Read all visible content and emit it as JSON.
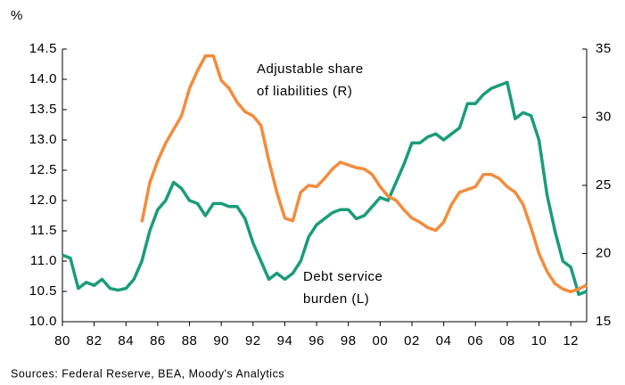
{
  "chart_data": {
    "type": "line",
    "y_label": "%",
    "source": "Sources: Federal Reserve, BEA, Moody's Analytics",
    "annotations": [
      {
        "lines": [
          "Adjustable share",
          "of liabilities (R)"
        ],
        "series": 1
      },
      {
        "lines": [
          "Debt service",
          "burden (L)"
        ],
        "series": 0
      }
    ],
    "x": [
      1980,
      1980.5,
      1981,
      1981.5,
      1982,
      1982.5,
      1983,
      1983.5,
      1984,
      1984.5,
      1985,
      1985.5,
      1986,
      1986.5,
      1987,
      1987.5,
      1988,
      1988.5,
      1989,
      1989.5,
      1990,
      1990.5,
      1991,
      1991.5,
      1992,
      1992.5,
      1993,
      1993.5,
      1994,
      1994.5,
      1995,
      1995.5,
      1996,
      1996.5,
      1997,
      1997.5,
      1998,
      1998.5,
      1999,
      1999.5,
      2000,
      2000.5,
      2001,
      2001.5,
      2002,
      2002.5,
      2003,
      2003.5,
      2004,
      2004.5,
      2005,
      2005.5,
      2006,
      2006.5,
      2007,
      2007.5,
      2008,
      2008.5,
      2009,
      2009.5,
      2010,
      2010.5,
      2011,
      2011.5,
      2012,
      2012.5,
      2013
    ],
    "series": [
      {
        "name": "Debt service burden (L)",
        "color": "#1a9c7a",
        "axis": "y",
        "values": [
          11.1,
          11.05,
          10.55,
          10.65,
          10.6,
          10.7,
          10.55,
          10.52,
          10.55,
          10.7,
          11.0,
          11.5,
          11.85,
          12.0,
          12.3,
          12.2,
          12.0,
          11.95,
          11.75,
          11.95,
          11.95,
          11.9,
          11.9,
          11.7,
          11.3,
          11.0,
          10.7,
          10.8,
          10.7,
          10.8,
          11.0,
          11.4,
          11.6,
          11.7,
          11.8,
          11.85,
          11.85,
          11.7,
          11.75,
          11.9,
          12.05,
          12.0,
          12.3,
          12.6,
          12.95,
          12.95,
          13.05,
          13.1,
          13.0,
          13.1,
          13.2,
          13.6,
          13.6,
          13.75,
          13.85,
          13.9,
          13.95,
          13.35,
          13.45,
          13.4,
          13.0,
          12.1,
          11.5,
          11.0,
          10.9,
          10.45,
          10.5
        ]
      },
      {
        "name": "Adjustable share of liabilities (R)",
        "color": "#f28c3c",
        "axis": "y2",
        "values": [
          null,
          null,
          null,
          null,
          null,
          null,
          null,
          null,
          null,
          null,
          22.3,
          25.2,
          26.8,
          28.1,
          29.1,
          30.1,
          32.1,
          33.4,
          34.5,
          34.5,
          32.7,
          32.1,
          31.1,
          30.4,
          30.1,
          29.4,
          26.8,
          24.5,
          22.6,
          22.4,
          24.5,
          25.0,
          24.9,
          25.5,
          26.2,
          26.7,
          26.5,
          26.3,
          26.2,
          25.8,
          24.9,
          24.2,
          23.9,
          23.2,
          22.6,
          22.3,
          21.9,
          21.7,
          22.3,
          23.6,
          24.5,
          24.7,
          24.9,
          25.8,
          25.8,
          25.5,
          24.9,
          24.5,
          23.6,
          21.9,
          20.0,
          18.7,
          17.8,
          17.4,
          17.2,
          17.4,
          17.7
        ]
      }
    ],
    "xlim": [
      1980,
      2013
    ],
    "xticks": [
      {
        "value": 1980,
        "label": "80"
      },
      {
        "value": 1982,
        "label": "82"
      },
      {
        "value": 1984,
        "label": "84"
      },
      {
        "value": 1986,
        "label": "86"
      },
      {
        "value": 1988,
        "label": "88"
      },
      {
        "value": 1990,
        "label": "90"
      },
      {
        "value": 1992,
        "label": "92"
      },
      {
        "value": 1994,
        "label": "94"
      },
      {
        "value": 1996,
        "label": "96"
      },
      {
        "value": 1998,
        "label": "98"
      },
      {
        "value": 2000,
        "label": "00"
      },
      {
        "value": 2002,
        "label": "02"
      },
      {
        "value": 2004,
        "label": "04"
      },
      {
        "value": 2006,
        "label": "06"
      },
      {
        "value": 2008,
        "label": "08"
      },
      {
        "value": 2010,
        "label": "10"
      },
      {
        "value": 2012,
        "label": "12"
      }
    ],
    "ylim": [
      10,
      14.5
    ],
    "yticks": [
      {
        "value": 10,
        "label": "10.0"
      },
      10.5,
      {
        "value": 11,
        "label": "11.0"
      },
      11.5,
      {
        "value": 12,
        "label": "12.0"
      },
      12.5,
      {
        "value": 13,
        "label": "13.0"
      },
      13.5,
      {
        "value": 14,
        "label": "14.0"
      },
      14.5
    ],
    "y2lim": [
      15,
      35
    ],
    "y2ticks": [
      15,
      20,
      25,
      30,
      35
    ],
    "grid": false
  }
}
